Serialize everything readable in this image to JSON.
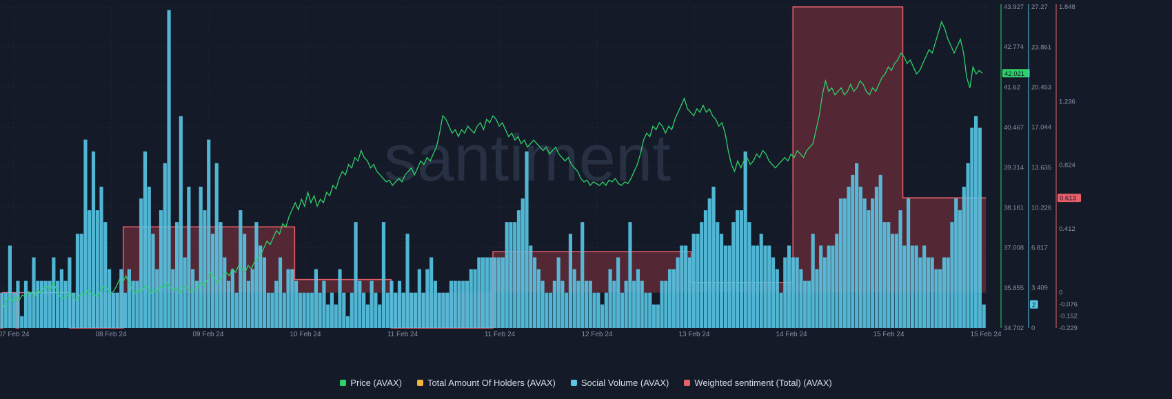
{
  "colors": {
    "background": "#151a28",
    "grid": "#232a3a",
    "price": "#2fd16a",
    "holders": "#f2b33d",
    "social": "#58c8e6",
    "sentiment": "#e8606a",
    "sentiment_fill": "#6a2c3a",
    "axis_text": "#8a93a6"
  },
  "watermark": "santiment",
  "chart_data": {
    "type": "line",
    "xlabel": "",
    "x_ticks": [
      "07 Feb 24",
      "08 Feb 24",
      "09 Feb 24",
      "10 Feb 24",
      "11 Feb 24",
      "11 Feb 24",
      "12 Feb 24",
      "13 Feb 24",
      "14 Feb 24",
      "15 Feb 24",
      "15 Feb 24"
    ],
    "axes": {
      "price": {
        "ticks": [
          "43.927",
          "42.774",
          "41.62",
          "40.467",
          "39.314",
          "38.161",
          "37.008",
          "35.855",
          "34.702"
        ],
        "ylim": [
          34.702,
          43.927
        ]
      },
      "social": {
        "ticks": [
          "27.27",
          "23.861",
          "20.453",
          "17.044",
          "13.635",
          "10.226",
          "6.817",
          "3.409",
          "0"
        ],
        "ylim": [
          0,
          27.27
        ]
      },
      "sentiment": {
        "ticks": [
          "1.848",
          "1.236",
          "0.824",
          "0.412",
          "0",
          "-0.076",
          "-0.152",
          "-0.229"
        ],
        "ylim": [
          -0.229,
          1.848
        ]
      }
    },
    "current_labels": {
      "price": "42.021",
      "social": "2",
      "sentiment": "0.613"
    },
    "series": [
      {
        "name": "Price (AVAX)",
        "axis": "price",
        "type": "line",
        "values": [
          35.3,
          35.5,
          35.6,
          35.45,
          35.6,
          35.5,
          35.65,
          35.6,
          35.75,
          35.7,
          35.6,
          35.8,
          35.7,
          35.85,
          35.9,
          35.8,
          36.0,
          35.8,
          35.6,
          35.55,
          35.6,
          35.7,
          35.65,
          35.5,
          35.6,
          35.7,
          35.65,
          35.8,
          35.7,
          35.65,
          35.6,
          35.8,
          35.9,
          35.85,
          35.7,
          35.75,
          35.9,
          36.1,
          36.0,
          36.2,
          36.0,
          35.8,
          35.7,
          35.8,
          35.75,
          35.9,
          35.85,
          35.7,
          35.8,
          35.75,
          35.9,
          35.85,
          36.0,
          35.9,
          35.8,
          35.85,
          35.7,
          35.8,
          35.9,
          35.8,
          35.75,
          35.8,
          35.9,
          36.0,
          35.9,
          36.1,
          36.3,
          36.2,
          36.0,
          36.1,
          36.2,
          36.3,
          36.2,
          36.4,
          36.3,
          36.5,
          36.4,
          36.3,
          36.5,
          36.4,
          36.6,
          36.7,
          36.8,
          37.0,
          37.2,
          37.1,
          37.3,
          37.5,
          37.4,
          37.7,
          37.6,
          37.9,
          38.1,
          38.3,
          38.1,
          38.4,
          38.2,
          38.6,
          38.3,
          38.5,
          38.2,
          38.4,
          38.3,
          38.6,
          38.5,
          38.8,
          38.7,
          39.0,
          39.2,
          39.1,
          39.4,
          39.3,
          39.6,
          39.5,
          39.8,
          39.6,
          39.5,
          39.3,
          39.4,
          39.2,
          39.1,
          39.0,
          38.9,
          38.95,
          38.8,
          38.9,
          39.0,
          38.9,
          39.1,
          39.2,
          39.3,
          39.1,
          39.3,
          39.5,
          39.4,
          39.6,
          39.5,
          39.7,
          39.9,
          40.3,
          40.8,
          40.7,
          40.5,
          40.3,
          40.4,
          40.2,
          40.4,
          40.3,
          40.5,
          40.4,
          40.3,
          40.5,
          40.6,
          40.4,
          40.7,
          40.6,
          40.8,
          40.7,
          40.5,
          40.6,
          40.4,
          40.2,
          40.3,
          40.1,
          40.2,
          40.0,
          40.1,
          39.9,
          40.0,
          40.1,
          40.0,
          39.9,
          39.8,
          39.9,
          39.7,
          39.8,
          39.9,
          39.7,
          39.6,
          39.5,
          39.6,
          39.4,
          39.3,
          39.2,
          39.0,
          38.9,
          38.95,
          38.8,
          38.9,
          38.85,
          38.8,
          38.9,
          38.8,
          38.95,
          38.9,
          39.0,
          38.85,
          38.8,
          38.9,
          38.85,
          39.0,
          39.2,
          39.4,
          39.7,
          40.1,
          40.3,
          40.2,
          40.5,
          40.4,
          40.6,
          40.5,
          40.3,
          40.5,
          40.4,
          40.7,
          40.9,
          41.1,
          41.3,
          41.0,
          40.9,
          40.8,
          41.0,
          40.9,
          41.1,
          40.9,
          41.0,
          40.8,
          40.7,
          40.5,
          40.6,
          40.3,
          39.8,
          39.4,
          39.2,
          39.5,
          39.3,
          39.5,
          39.6,
          39.4,
          39.5,
          39.7,
          39.6,
          39.8,
          39.7,
          39.5,
          39.4,
          39.3,
          39.4,
          39.5,
          39.6,
          39.5,
          39.7,
          39.6,
          39.8,
          39.7,
          39.6,
          39.8,
          39.9,
          40.0,
          40.4,
          40.8,
          41.4,
          41.8,
          41.5,
          41.6,
          41.4,
          41.5,
          41.6,
          41.4,
          41.5,
          41.7,
          41.5,
          41.6,
          41.8,
          41.7,
          41.5,
          41.4,
          41.6,
          41.5,
          41.7,
          41.9,
          42.0,
          42.2,
          42.1,
          42.3,
          42.4,
          42.6,
          42.5,
          42.3,
          42.4,
          42.2,
          42.0,
          42.1,
          42.3,
          42.5,
          42.7,
          42.6,
          42.9,
          43.2,
          43.5,
          43.3,
          43.0,
          42.8,
          42.6,
          42.8,
          43.0,
          42.6,
          41.9,
          41.6,
          42.2,
          42.0,
          42.1,
          42.021
        ]
      },
      {
        "name": "Social Volume (AVAX)",
        "axis": "social",
        "type": "bar",
        "values": [
          3,
          3,
          7,
          3,
          4,
          1,
          4,
          3,
          6,
          4,
          4,
          4,
          4,
          6,
          4,
          5,
          4,
          6,
          3,
          8,
          8,
          16,
          10,
          15,
          10,
          12,
          9,
          5,
          3,
          3,
          5,
          3,
          5,
          4,
          4,
          11,
          15,
          12,
          8,
          5,
          10,
          14,
          27,
          5,
          9,
          18,
          6,
          12,
          5,
          4,
          12,
          10,
          16,
          8,
          14,
          9,
          6,
          4,
          5,
          3,
          10,
          8,
          4,
          5,
          9,
          7,
          6,
          3,
          3,
          4,
          6,
          3,
          5,
          5,
          4,
          3,
          3,
          3,
          3,
          5,
          3,
          4,
          2,
          3,
          2,
          5,
          3,
          1,
          3,
          9,
          4,
          3,
          2,
          4,
          3,
          2,
          9,
          3,
          4,
          3,
          4,
          3,
          8,
          3,
          3,
          5,
          3,
          5,
          6,
          4,
          3,
          3,
          3,
          4,
          4,
          4,
          4,
          4,
          5,
          5,
          6,
          6,
          6,
          6,
          6,
          6,
          6,
          9,
          9,
          9,
          10,
          11,
          15,
          7,
          6,
          5,
          4,
          3,
          3,
          4,
          6,
          4,
          3,
          8,
          5,
          4,
          9,
          4,
          4,
          3,
          3,
          2,
          3,
          5,
          4,
          6,
          3,
          4,
          9,
          4,
          5,
          4,
          3,
          3,
          2,
          2,
          4,
          4,
          5,
          5,
          6,
          7,
          7,
          6,
          8,
          8,
          9,
          10,
          11,
          12,
          9,
          8,
          7,
          7,
          9,
          10,
          10,
          15,
          9,
          7,
          7,
          8,
          7,
          7,
          6,
          5,
          3,
          6,
          7,
          6,
          6,
          5,
          4,
          4,
          8,
          5,
          7,
          6,
          7,
          7,
          8,
          11,
          11,
          12,
          13,
          14,
          12,
          11,
          10,
          11,
          12,
          13,
          9,
          9,
          8,
          8,
          10,
          7,
          11,
          7,
          7,
          6,
          7,
          6,
          6,
          5,
          5,
          6,
          6,
          9,
          11,
          10,
          12,
          14,
          17,
          18,
          17,
          2
        ]
      },
      {
        "name": "Weighted sentiment (Total) (AVAX)",
        "axis": "sentiment",
        "type": "step-area",
        "values": [
          -0.229,
          0.0,
          0.0,
          0.0,
          0.0,
          0.0,
          -0.229,
          0.0,
          0.0,
          0.0,
          0.0,
          0.0,
          0.0,
          0.0,
          0.0,
          0.0,
          0.0,
          0.0,
          0.0,
          0.0,
          0.0,
          0.0,
          0.0,
          0.0,
          0.0,
          0.0,
          -0.229,
          -0.229,
          -0.229,
          -0.229,
          -0.229,
          -0.229,
          -0.229,
          -0.229,
          -0.229,
          -0.229,
          -0.229,
          -0.229,
          -0.229,
          -0.229,
          -0.229,
          -0.229,
          -0.229,
          -0.229,
          -0.229,
          -0.229,
          0.425,
          0.425,
          0.425,
          0.425,
          0.425,
          0.425,
          0.425,
          0.425,
          0.425,
          0.425,
          0.425,
          0.425,
          0.425,
          0.425,
          0.425,
          0.425,
          0.425,
          0.425,
          0.425,
          0.425,
          0.425,
          0.425,
          0.425,
          0.425,
          0.425,
          0.425,
          0.425,
          0.425,
          0.425,
          0.425,
          0.425,
          0.425,
          0.425,
          0.425,
          0.425,
          0.425,
          0.425,
          0.425,
          0.425,
          0.425,
          0.425,
          0.425,
          0.425,
          0.425,
          0.425,
          0.425,
          0.425,
          0.425,
          0.425,
          0.425,
          0.425,
          0.425,
          0.425,
          0.425,
          0.425,
          0.425,
          0.425,
          0.425,
          0.425,
          0.425,
          0.425,
          0.425,
          0.425,
          0.425,
          0.085,
          0.085,
          0.085,
          0.085,
          0.085,
          0.085,
          0.085,
          0.085,
          0.085,
          0.085,
          0.085,
          0.085,
          0.085,
          0.085,
          0.085,
          0.085,
          0.085,
          0.085,
          0.085,
          0.085,
          0.085,
          0.085,
          0.085,
          0.085,
          0.085,
          0.085,
          0.085,
          0.085,
          0.085,
          0.085,
          0.085,
          0.085,
          0.085,
          0.085,
          0.085,
          0.085,
          -0.229,
          -0.229,
          -0.229,
          -0.229,
          -0.229,
          -0.229,
          -0.229,
          -0.229,
          -0.229,
          -0.229,
          -0.229,
          -0.229,
          -0.229,
          -0.229,
          -0.229,
          -0.229,
          -0.229,
          -0.229,
          -0.229,
          -0.229,
          -0.229,
          -0.229,
          -0.229,
          -0.229,
          -0.229,
          -0.229,
          -0.229,
          -0.229,
          -0.229,
          -0.229,
          -0.229,
          -0.229,
          -0.229,
          -0.229,
          -0.229,
          -0.229,
          -0.229,
          -0.229,
          0.265,
          0.265,
          0.265,
          0.265,
          0.265,
          0.265,
          0.265,
          0.265,
          0.265,
          0.265,
          0.265,
          0.265,
          0.265,
          0.265,
          0.265,
          0.265,
          0.265,
          0.265,
          0.265,
          0.265,
          0.265,
          0.265,
          0.265,
          0.265,
          0.265,
          0.265,
          0.265,
          0.265,
          0.265,
          0.265,
          0.265,
          0.265,
          0.265,
          0.265,
          0.265,
          0.265,
          0.265,
          0.265,
          0.265,
          0.265,
          0.265,
          0.265,
          0.265,
          0.265,
          0.265,
          0.265,
          0.265,
          0.265,
          0.265,
          0.265,
          0.265,
          0.265,
          0.265,
          0.265,
          0.265,
          0.265,
          0.265,
          0.265,
          0.265,
          0.265,
          0.265,
          0.265,
          0.265,
          0.265,
          0.265,
          0.265,
          0.265,
          0.265,
          0.265,
          0.265,
          0.265,
          0.265,
          0.265,
          0.265,
          0.065,
          0.065,
          0.065,
          0.065,
          0.065,
          0.065,
          0.065,
          0.065,
          0.065,
          0.065,
          0.065,
          0.065,
          0.065,
          0.065,
          0.065,
          0.065,
          0.065,
          0.065,
          0.065,
          0.065,
          0.065,
          0.065,
          0.065,
          0.065,
          0.065,
          0.065,
          0.065,
          0.065,
          0.065,
          0.065,
          0.065,
          0.065,
          0.065,
          0.065,
          0.065,
          0.065,
          0.065,
          0.065,
          1.848,
          1.848,
          1.848,
          1.848,
          1.848,
          1.848,
          1.848,
          1.848,
          1.848,
          1.848,
          1.848,
          1.848,
          1.848,
          1.848,
          1.848,
          1.848,
          1.848,
          1.848,
          1.848,
          1.848,
          1.848,
          1.848,
          1.848,
          1.848,
          1.848,
          1.848,
          1.848,
          1.848,
          1.848,
          1.848,
          1.848,
          1.848,
          1.848,
          1.848,
          1.848,
          1.848,
          1.848,
          1.848,
          1.848,
          1.848,
          1.848,
          0.613,
          0.613,
          0.613,
          0.613,
          0.613,
          0.613,
          0.613,
          0.613,
          0.613,
          0.613,
          0.613,
          0.613,
          0.613,
          0.613,
          0.613,
          0.613,
          0.613,
          0.613,
          0.613,
          0.613,
          0.613,
          0.613,
          0.613,
          0.613,
          0.613,
          0.613,
          0.613,
          0.613,
          0.613,
          0.613,
          0.613
        ]
      }
    ],
    "legend": [
      {
        "label": "Price (AVAX)",
        "color": "#2fd16a"
      },
      {
        "label": "Total Amount Of Holders (AVAX)",
        "color": "#f2b33d"
      },
      {
        "label": "Social Volume (AVAX)",
        "color": "#58c8e6"
      },
      {
        "label": "Weighted sentiment (Total) (AVAX)",
        "color": "#e8606a"
      }
    ],
    "legend_position": "bottom-center",
    "grid": true
  }
}
